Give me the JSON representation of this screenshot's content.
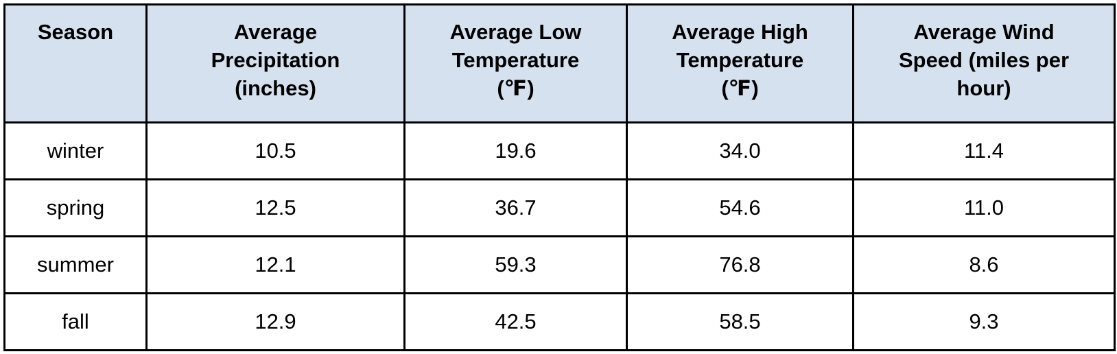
{
  "chart_data": {
    "type": "table",
    "title": "",
    "columns": [
      "Season",
      "Average Precipitation (inches)",
      "Average Low Temperature (℉)",
      "Average High Temperature (℉)",
      "Average Wind Speed (miles per hour)"
    ],
    "rows": [
      [
        "winter",
        10.5,
        19.6,
        34.0,
        11.4
      ],
      [
        "spring",
        12.5,
        36.7,
        54.6,
        11.0
      ],
      [
        "summer",
        12.1,
        59.3,
        76.8,
        8.6
      ],
      [
        "fall",
        12.9,
        42.5,
        58.5,
        9.3
      ]
    ]
  },
  "table": {
    "header": {
      "season": "Season",
      "precipitation": "Average\nPrecipitation\n(inches)",
      "low_temp": "Average Low\nTemperature\n(℉)",
      "high_temp": "Average High\nTemperature\n(℉)",
      "wind_speed": "Average Wind\nSpeed (miles per\nhour)"
    },
    "rows": [
      {
        "season": "winter",
        "precipitation": "10.5",
        "low_temp": "19.6",
        "high_temp": "34.0",
        "wind_speed": "11.4"
      },
      {
        "season": "spring",
        "precipitation": "12.5",
        "low_temp": "36.7",
        "high_temp": "54.6",
        "wind_speed": "11.0"
      },
      {
        "season": "summer",
        "precipitation": "12.1",
        "low_temp": "59.3",
        "high_temp": "76.8",
        "wind_speed": "8.6"
      },
      {
        "season": "fall",
        "precipitation": "12.9",
        "low_temp": "42.5",
        "high_temp": "58.5",
        "wind_speed": "9.3"
      }
    ]
  },
  "colors": {
    "header_bg": "#d6e1f0",
    "border": "#000000",
    "text": "#000000",
    "page_bg": "#ffffff"
  }
}
